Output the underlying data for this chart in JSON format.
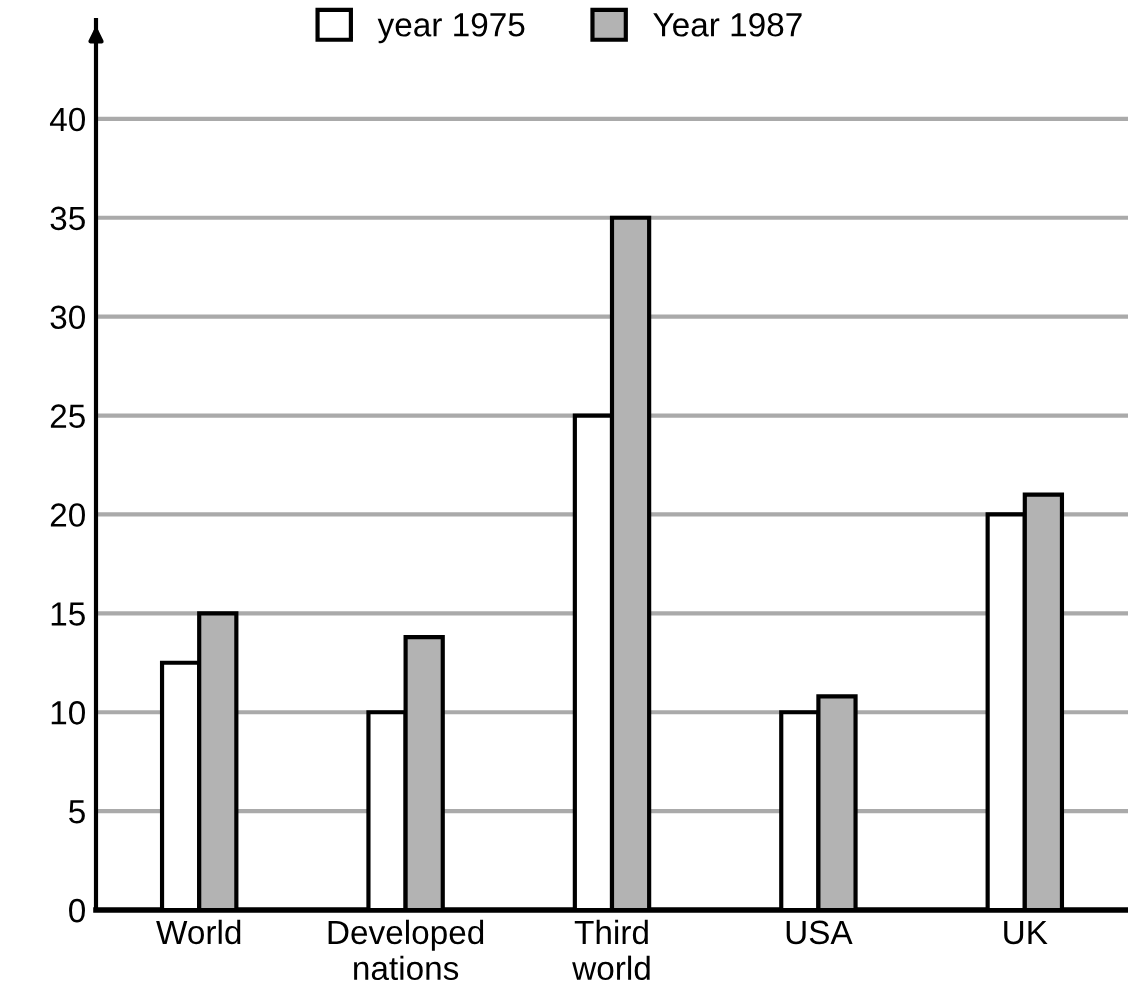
{
  "chart_data": {
    "type": "bar",
    "categories": [
      "World",
      "Developed\nnations",
      "Third\nworld",
      "USA",
      "UK"
    ],
    "series": [
      {
        "name": "year 1975",
        "color": "#ffffff",
        "values": [
          12.5,
          10,
          25,
          10,
          20
        ]
      },
      {
        "name": "Year 1987",
        "color": "#b3b3b3",
        "values": [
          15,
          13.8,
          35,
          10.8,
          21
        ]
      }
    ],
    "ylim": [
      0,
      45
    ],
    "yticks": [
      0,
      5,
      10,
      15,
      20,
      25,
      30,
      35,
      40
    ],
    "grid": "y",
    "legend": "top"
  }
}
